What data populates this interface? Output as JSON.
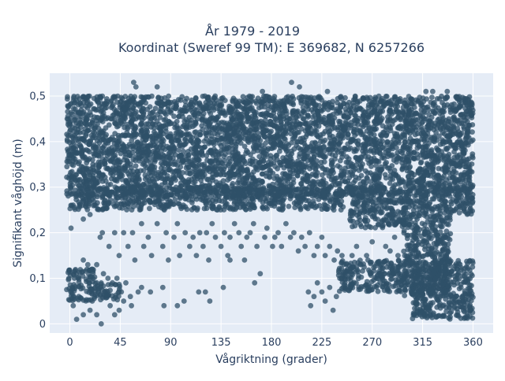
{
  "chart_data": {
    "type": "scatter",
    "title_line1": "År 1979 - 2019",
    "title_line2": "Koordinat (Sweref 99 TM): E 369682, N 6257266",
    "xlabel": "Vågriktning (grader)",
    "ylabel": "Signifikant våghöjd (m)",
    "xlim": [
      -18,
      378
    ],
    "ylim": [
      -0.02,
      0.55
    ],
    "x_ticks": [
      0,
      45,
      90,
      135,
      180,
      225,
      270,
      315,
      360
    ],
    "x_tick_labels": [
      "0",
      "45",
      "90",
      "135",
      "180",
      "225",
      "270",
      "315",
      "360"
    ],
    "y_ticks": [
      0,
      0.1,
      0.2,
      0.3,
      0.4,
      0.5
    ],
    "y_tick_labels": [
      "0",
      "0,1",
      "0,2",
      "0,3",
      "0,4",
      "0,5"
    ],
    "grid": true,
    "marker_color": "#2f5068",
    "plot_background": "#e5ecf6",
    "series": [
      {
        "dense_regions": [
          {
            "x": [
              -3,
              360
            ],
            "y": [
              0.28,
              0.5
            ]
          },
          {
            "x": [
              0,
              245
            ],
            "y": [
              0.25,
              0.3
            ]
          },
          {
            "x": [
              250,
              300
            ],
            "y": [
              0.21,
              0.3
            ]
          },
          {
            "x": [
              298,
              340
            ],
            "y": [
              0.06,
              0.3
            ]
          },
          {
            "x": [
              305,
              360
            ],
            "y": [
              0.01,
              0.14
            ]
          },
          {
            "x": [
              340,
              360
            ],
            "y": [
              0.24,
              0.3
            ]
          },
          {
            "x": [
              -3,
              25
            ],
            "y": [
              0.05,
              0.12
            ]
          },
          {
            "x": [
              25,
              45
            ],
            "y": [
              0.05,
              0.09
            ]
          },
          {
            "x": [
              240,
              300
            ],
            "y": [
              0.07,
              0.14
            ]
          }
        ],
        "points": [
          [
            57,
            0.53
          ],
          [
            59,
            0.52
          ],
          [
            78,
            0.52
          ],
          [
            172,
            0.51
          ],
          [
            198,
            0.53
          ],
          [
            205,
            0.52
          ],
          [
            230,
            0.51
          ],
          [
            318,
            0.51
          ],
          [
            324,
            0.51
          ],
          [
            337,
            0.51
          ],
          [
            1,
            0.21
          ],
          [
            12,
            0.23
          ],
          [
            18,
            0.24
          ],
          [
            27,
            0.19
          ],
          [
            29,
            0.2
          ],
          [
            35,
            0.17
          ],
          [
            40,
            0.2
          ],
          [
            44,
            0.15
          ],
          [
            48,
            0.2
          ],
          [
            52,
            0.17
          ],
          [
            56,
            0.2
          ],
          [
            58,
            0.14
          ],
          [
            64,
            0.22
          ],
          [
            66,
            0.17
          ],
          [
            70,
            0.19
          ],
          [
            73,
            0.15
          ],
          [
            78,
            0.22
          ],
          [
            83,
            0.17
          ],
          [
            86,
            0.2
          ],
          [
            88,
            0.14
          ],
          [
            93,
            0.19
          ],
          [
            96,
            0.22
          ],
          [
            98,
            0.15
          ],
          [
            103,
            0.2
          ],
          [
            107,
            0.17
          ],
          [
            110,
            0.19
          ],
          [
            113,
            0.15
          ],
          [
            116,
            0.2
          ],
          [
            119,
            0.17
          ],
          [
            122,
            0.2
          ],
          [
            124,
            0.14
          ],
          [
            127,
            0.22
          ],
          [
            130,
            0.19
          ],
          [
            135,
            0.17
          ],
          [
            138,
            0.2
          ],
          [
            141,
            0.15
          ],
          [
            143,
            0.19
          ],
          [
            147,
            0.22
          ],
          [
            151,
            0.2
          ],
          [
            153,
            0.17
          ],
          [
            158,
            0.19
          ],
          [
            161,
            0.2
          ],
          [
            164,
            0.22
          ],
          [
            167,
            0.17
          ],
          [
            174,
            0.19
          ],
          [
            176,
            0.21
          ],
          [
            181,
            0.17
          ],
          [
            183,
            0.19
          ],
          [
            186,
            0.2
          ],
          [
            189,
            0.17
          ],
          [
            193,
            0.22
          ],
          [
            197,
            0.19
          ],
          [
            200,
            0.2
          ],
          [
            204,
            0.16
          ],
          [
            207,
            0.19
          ],
          [
            210,
            0.17
          ],
          [
            214,
            0.2
          ],
          [
            218,
            0.15
          ],
          [
            221,
            0.17
          ],
          [
            225,
            0.19
          ],
          [
            228,
            0.15
          ],
          [
            232,
            0.17
          ],
          [
            236,
            0.14
          ],
          [
            239,
            0.16
          ],
          [
            243,
            0.15
          ],
          [
            42,
            0.1
          ],
          [
            46,
            0.07
          ],
          [
            50,
            0.09
          ],
          [
            54,
            0.06
          ],
          [
            61,
            0.07
          ],
          [
            64,
            0.08
          ],
          [
            72,
            0.07
          ],
          [
            55,
            0.04
          ],
          [
            48,
            0.05
          ],
          [
            44,
            0.03
          ],
          [
            40,
            0.02
          ],
          [
            36,
            0.04
          ],
          [
            28,
            0.0
          ],
          [
            24,
            0.02
          ],
          [
            18,
            0.03
          ],
          [
            12,
            0.02
          ],
          [
            6,
            0.01
          ],
          [
            3,
            0.04
          ],
          [
            8,
            0.06
          ],
          [
            20,
            0.05
          ],
          [
            83,
            0.08
          ],
          [
            84,
            0.04
          ],
          [
            96,
            0.04
          ],
          [
            102,
            0.05
          ],
          [
            115,
            0.07
          ],
          [
            121,
            0.07
          ],
          [
            125,
            0.05
          ],
          [
            137,
            0.08
          ],
          [
            143,
            0.14
          ],
          [
            156,
            0.14
          ],
          [
            165,
            0.09
          ],
          [
            170,
            0.11
          ],
          [
            213,
            0.07
          ],
          [
            215,
            0.04
          ],
          [
            218,
            0.06
          ],
          [
            221,
            0.09
          ],
          [
            225,
            0.07
          ],
          [
            228,
            0.05
          ],
          [
            232,
            0.08
          ],
          [
            235,
            0.03
          ],
          [
            238,
            0.06
          ],
          [
            241,
            0.1
          ],
          [
            244,
            0.08
          ],
          [
            248,
            0.12
          ],
          [
            252,
            0.15
          ],
          [
            256,
            0.17
          ],
          [
            260,
            0.13
          ],
          [
            265,
            0.15
          ],
          [
            270,
            0.18
          ],
          [
            274,
            0.1
          ],
          [
            282,
            0.17
          ],
          [
            286,
            0.16
          ],
          [
            290,
            0.19
          ],
          [
            293,
            0.15
          ],
          [
            12,
            0.14
          ],
          [
            16,
            0.13
          ],
          [
            20,
            0.12
          ],
          [
            24,
            0.13
          ],
          [
            30,
            0.11
          ],
          [
            34,
            0.1
          ],
          [
            38,
            0.09
          ]
        ]
      }
    ]
  }
}
